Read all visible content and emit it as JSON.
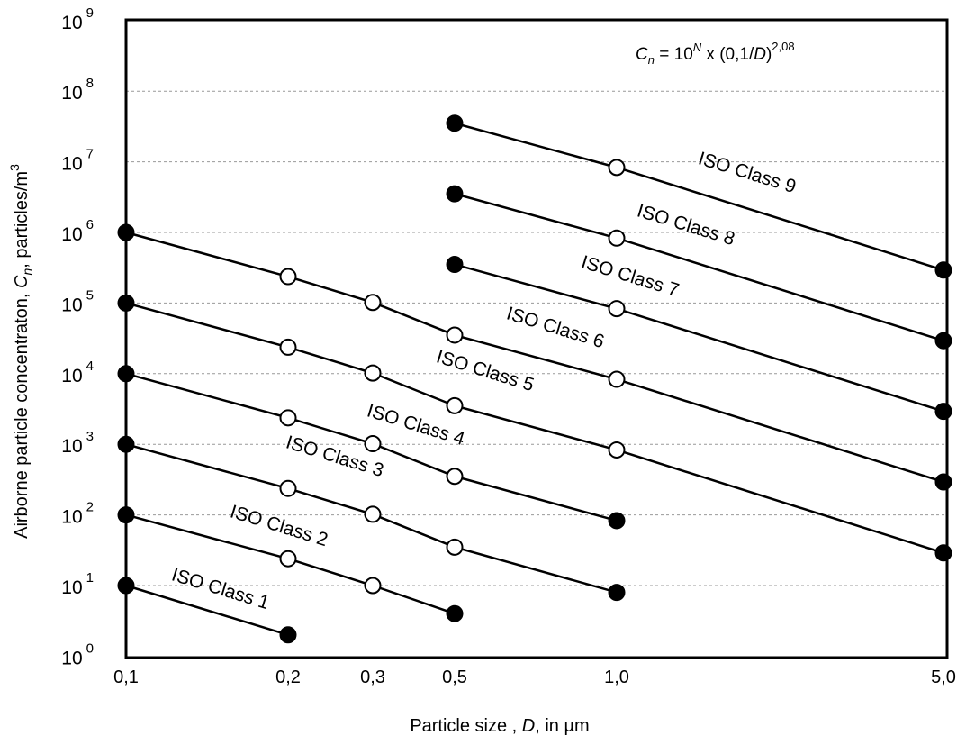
{
  "chart_data": {
    "type": "line",
    "title": "",
    "formula": {
      "c": "C",
      "sub": "n",
      "eq": " = 10",
      "sup1": "N",
      "rest": " x (0,1/",
      "d": "D",
      "close": ")",
      "sup2": "2,08"
    },
    "xlabel": {
      "pre": "Particle size , ",
      "var": "D",
      "post": ", in µm"
    },
    "ylabel": {
      "pre": "Airborne particle concentraton,  ",
      "var": "C",
      "sub": "n",
      "post": ",  particles/m",
      "sup": "3"
    },
    "x_scale": "log",
    "y_scale": "log",
    "xlim": [
      0.1,
      5.0
    ],
    "ylim": [
      1,
      1000000000
    ],
    "x_ticks": [
      0.1,
      0.2,
      0.3,
      0.5,
      1.0,
      5.0
    ],
    "x_tick_labels": [
      "0,1",
      "0,2",
      "0,3",
      "0,5",
      "1,0",
      "5,0"
    ],
    "y_ticks": [
      {
        "base": "10",
        "exp": "0"
      },
      {
        "base": "10",
        "exp": "1"
      },
      {
        "base": "10",
        "exp": "2"
      },
      {
        "base": "10",
        "exp": "3"
      },
      {
        "base": "10",
        "exp": "4"
      },
      {
        "base": "10",
        "exp": "5"
      },
      {
        "base": "10",
        "exp": "6"
      },
      {
        "base": "10",
        "exp": "7"
      },
      {
        "base": "10",
        "exp": "8"
      },
      {
        "base": "10",
        "exp": "9"
      }
    ],
    "grid": "horizontal dashed",
    "series": [
      {
        "name": "ISO Class 1",
        "x": [
          0.1,
          0.2
        ],
        "y": [
          10,
          2
        ]
      },
      {
        "name": "ISO Class 2",
        "x": [
          0.1,
          0.2,
          0.3,
          0.5
        ],
        "y": [
          100,
          24,
          10,
          4
        ]
      },
      {
        "name": "ISO Class 3",
        "x": [
          0.1,
          0.2,
          0.3,
          0.5,
          1.0
        ],
        "y": [
          1000,
          237,
          102,
          35,
          8
        ]
      },
      {
        "name": "ISO Class 4",
        "x": [
          0.1,
          0.2,
          0.3,
          0.5,
          1.0
        ],
        "y": [
          10000,
          2370,
          1020,
          352,
          83
        ]
      },
      {
        "name": "ISO Class 5",
        "x": [
          0.1,
          0.2,
          0.3,
          0.5,
          1.0,
          5.0
        ],
        "y": [
          100000,
          23700,
          10200,
          3520,
          832,
          29
        ]
      },
      {
        "name": "ISO Class 6",
        "x": [
          0.1,
          0.2,
          0.3,
          0.5,
          1.0,
          5.0
        ],
        "y": [
          1000000,
          237000,
          102000,
          35200,
          8320,
          293
        ]
      },
      {
        "name": "ISO Class 7",
        "x": [
          0.5,
          1.0,
          5.0
        ],
        "y": [
          352000,
          83200,
          2930
        ]
      },
      {
        "name": "ISO Class 8",
        "x": [
          0.5,
          1.0,
          5.0
        ],
        "y": [
          3520000,
          832000,
          29300
        ]
      },
      {
        "name": "ISO Class 9",
        "x": [
          0.5,
          1.0,
          5.0
        ],
        "y": [
          35200000,
          8320000,
          293000
        ]
      }
    ],
    "marker_style": "filled circles at line endpoints, open circles at intermediate points",
    "colors": {
      "line": "#000000",
      "grid": "#999999",
      "open_marker_fill": "#ffffff"
    }
  }
}
